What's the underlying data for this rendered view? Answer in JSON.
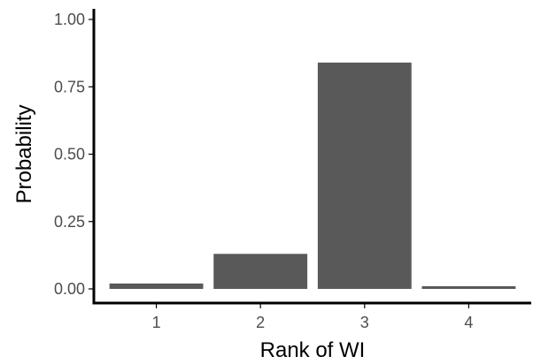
{
  "chart_data": {
    "type": "bar",
    "xlabel": "Rank of WI",
    "ylabel": "Probability",
    "categories": [
      "1",
      "2",
      "3",
      "4"
    ],
    "values": [
      0.02,
      0.13,
      0.84,
      0.01
    ],
    "ylim": [
      0,
      1.0
    ],
    "yticks": [
      0.0,
      0.25,
      0.5,
      0.75,
      1.0
    ],
    "ytick_labels": [
      "0.00",
      "0.25",
      "0.50",
      "0.75",
      "1.00"
    ],
    "grid": false,
    "bar_color": "#595959",
    "axis_color": "#000000"
  }
}
